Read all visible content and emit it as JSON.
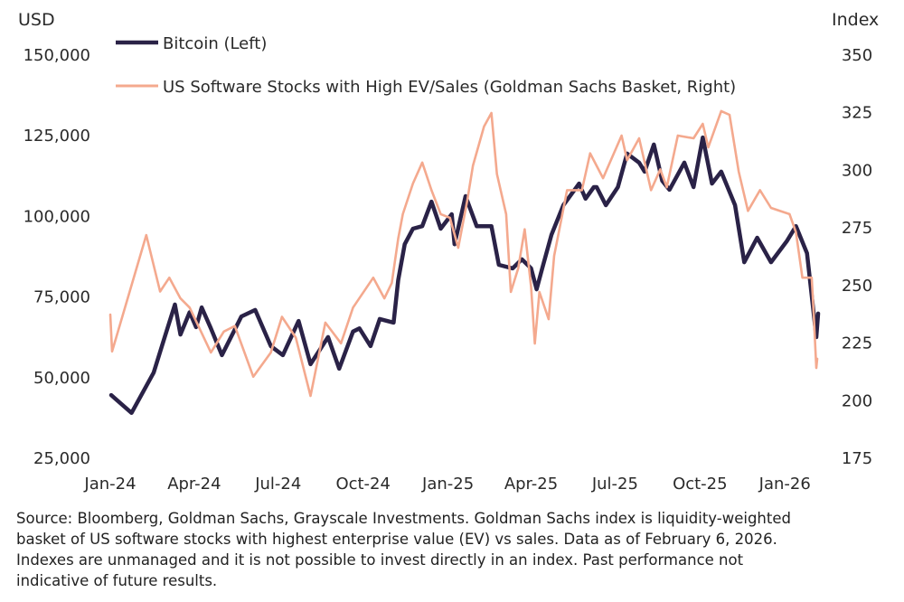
{
  "chart_data": {
    "type": "line",
    "title": "",
    "left_axis": {
      "label": "USD",
      "range": [
        25000,
        150000
      ],
      "ticks": [
        "150,000",
        "125,000",
        "100,000",
        "75,000",
        "50,000",
        "25,000"
      ],
      "tick_values": [
        150000,
        125000,
        100000,
        75000,
        50000,
        25000
      ]
    },
    "right_axis": {
      "label": "Index",
      "range": [
        175,
        350
      ],
      "ticks": [
        "350",
        "325",
        "300",
        "275",
        "250",
        "225",
        "200",
        "175"
      ],
      "tick_values": [
        350,
        325,
        300,
        275,
        250,
        225,
        200,
        175
      ]
    },
    "x_axis": {
      "range": [
        "2024-01-01",
        "2026-02-06"
      ],
      "ticks": [
        "Jan-24",
        "Apr-24",
        "Jul-24",
        "Oct-24",
        "Jan-25",
        "Apr-25",
        "Jul-25",
        "Oct-25",
        "Jan-26"
      ],
      "tick_dates": [
        "2024-01-01",
        "2024-04-01",
        "2024-07-01",
        "2024-10-01",
        "2025-01-01",
        "2025-04-01",
        "2025-07-01",
        "2025-10-01",
        "2026-01-01"
      ]
    },
    "grid": false,
    "legend_placement": "top-left",
    "series": [
      {
        "name": "Bitcoin (Left)",
        "axis": "left",
        "color": "#2a2247",
        "x": [
          "2024-01-02",
          "2024-01-24",
          "2024-02-17",
          "2024-02-29",
          "2024-03-11",
          "2024-03-17",
          "2024-03-27",
          "2024-04-03",
          "2024-04-09",
          "2024-04-19",
          "2024-05-01",
          "2024-05-22",
          "2024-06-06",
          "2024-06-23",
          "2024-07-06",
          "2024-07-23",
          "2024-08-05",
          "2024-08-24",
          "2024-09-05",
          "2024-09-20",
          "2024-09-27",
          "2024-10-09",
          "2024-10-19",
          "2024-11-03",
          "2024-11-08",
          "2024-11-15",
          "2024-11-24",
          "2024-12-04",
          "2024-12-14",
          "2024-12-24",
          "2025-01-05",
          "2025-01-08",
          "2025-01-20",
          "2025-02-01",
          "2025-02-17",
          "2025-02-25",
          "2025-03-12",
          "2025-03-22",
          "2025-04-01",
          "2025-04-07",
          "2025-04-13",
          "2025-04-23",
          "2025-05-06",
          "2025-05-23",
          "2025-05-30",
          "2025-06-08",
          "2025-06-11",
          "2025-06-21",
          "2025-07-04",
          "2025-07-14",
          "2025-07-27",
          "2025-08-02",
          "2025-08-12",
          "2025-08-21",
          "2025-08-29",
          "2025-09-14",
          "2025-09-24",
          "2025-10-04",
          "2025-10-14",
          "2025-10-24",
          "2025-11-08",
          "2025-11-18",
          "2025-12-02",
          "2025-12-17",
          "2026-01-03",
          "2026-01-13",
          "2026-01-25",
          "2026-02-04",
          "2026-02-06"
        ],
        "values": [
          44300,
          38800,
          51300,
          62300,
          72400,
          63100,
          70000,
          65400,
          71500,
          65000,
          56700,
          68700,
          70700,
          59500,
          56700,
          67300,
          53900,
          62300,
          52500,
          64000,
          65000,
          59500,
          67900,
          66800,
          80000,
          91100,
          95900,
          96700,
          104300,
          95900,
          100400,
          91100,
          106000,
          96700,
          96700,
          84700,
          83600,
          86400,
          83600,
          77100,
          83600,
          94000,
          103200,
          109900,
          105200,
          108800,
          108800,
          103200,
          108800,
          119200,
          116400,
          113600,
          122000,
          110800,
          108000,
          116400,
          108800,
          124200,
          109900,
          113600,
          103200,
          85500,
          93100,
          85500,
          92000,
          96700,
          88300,
          62300,
          69600
        ]
      },
      {
        "name": "US Software Stocks with High EV/Sales (Goldman Sachs Basket, Right)",
        "axis": "right",
        "color": "#f4a98e",
        "x": [
          "2024-01-01",
          "2024-01-03",
          "2024-02-09",
          "2024-02-24",
          "2024-03-05",
          "2024-03-17",
          "2024-03-27",
          "2024-04-19",
          "2024-05-03",
          "2024-05-15",
          "2024-06-04",
          "2024-06-23",
          "2024-07-05",
          "2024-07-20",
          "2024-08-05",
          "2024-08-21",
          "2024-09-07",
          "2024-09-20",
          "2024-10-12",
          "2024-10-24",
          "2024-11-01",
          "2024-11-08",
          "2024-11-13",
          "2024-11-24",
          "2024-12-04",
          "2024-12-14",
          "2024-12-24",
          "2025-01-03",
          "2025-01-12",
          "2025-01-22",
          "2025-01-28",
          "2025-02-09",
          "2025-02-17",
          "2025-02-23",
          "2025-03-05",
          "2025-03-10",
          "2025-03-18",
          "2025-03-25",
          "2025-04-01",
          "2025-04-05",
          "2025-04-10",
          "2025-04-20",
          "2025-04-26",
          "2025-05-10",
          "2025-05-26",
          "2025-06-04",
          "2025-06-18",
          "2025-07-08",
          "2025-07-14",
          "2025-07-27",
          "2025-08-09",
          "2025-08-19",
          "2025-08-26",
          "2025-09-07",
          "2025-09-24",
          "2025-10-04",
          "2025-10-10",
          "2025-10-24",
          "2025-11-02",
          "2025-11-12",
          "2025-11-22",
          "2025-12-05",
          "2025-12-17",
          "2026-01-06",
          "2026-01-13",
          "2026-01-20",
          "2026-01-30",
          "2026-02-01",
          "2026-02-04",
          "2026-02-05"
        ],
        "values": [
          237,
          221,
          271.5,
          247,
          253,
          244,
          240,
          220.5,
          229.6,
          232,
          210,
          220.5,
          236,
          227,
          201.7,
          233.5,
          224.5,
          240,
          253,
          244,
          250.7,
          270,
          280.6,
          293.9,
          303,
          291,
          280.6,
          279,
          266,
          287,
          301.7,
          318.6,
          324.5,
          298,
          280.6,
          246.8,
          257,
          274,
          249,
          224.4,
          246.8,
          235,
          262.5,
          291,
          291,
          307,
          296.2,
          314.7,
          304,
          313.5,
          291,
          300,
          292.3,
          314.7,
          313.5,
          319.8,
          309.6,
          325.3,
          323.7,
          299,
          282,
          291,
          283.3,
          280.6,
          272.7,
          253,
          253,
          238.9,
          213.8,
          217.8
        ]
      }
    ]
  },
  "footer": {
    "lines": [
      "Source: Bloomberg, Goldman Sachs, Grayscale Investments. Goldman Sachs index is liquidity-weighted",
      "basket of US software stocks with highest enterprise value (EV) vs sales. Data as of February 6, 2026.",
      "Indexes are unmanaged and it is not possible to invest directly in an index. Past performance not",
      "indicative of future results."
    ]
  }
}
